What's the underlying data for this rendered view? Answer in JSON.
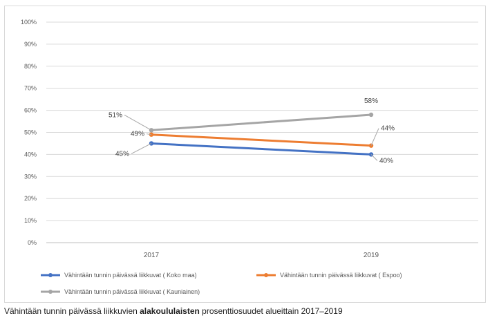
{
  "chart_data": {
    "type": "line",
    "x": [
      "2017",
      "2019"
    ],
    "yticks": [
      "0%",
      "10%",
      "20%",
      "30%",
      "40%",
      "50%",
      "60%",
      "70%",
      "80%",
      "90%",
      "100%"
    ],
    "ylim": [
      0,
      100
    ],
    "grid": true,
    "legend_position": "bottom",
    "series": [
      {
        "name": "Vähintään tunnin päivässä liikkuvat  ( Koko maa)",
        "values": [
          45,
          40
        ],
        "labels": [
          "45%",
          "40%"
        ],
        "color": "#4472c4"
      },
      {
        "name": "Vähintään tunnin päivässä liikkuvat  ( Espoo)",
        "values": [
          49,
          44
        ],
        "labels": [
          "49%",
          "44%"
        ],
        "color": "#ed7d31"
      },
      {
        "name": "Vähintään tunnin päivässä liikkuvat  ( Kauniainen)",
        "values": [
          51,
          58
        ],
        "labels": [
          "51%",
          "58%"
        ],
        "color": "#a5a5a5"
      }
    ]
  },
  "caption": {
    "before": "Vähintään tunnin päivässä liikkuvien ",
    "bold": "alakoululaisten",
    "after": " prosenttiosuudet alueittain 2017–2019"
  }
}
